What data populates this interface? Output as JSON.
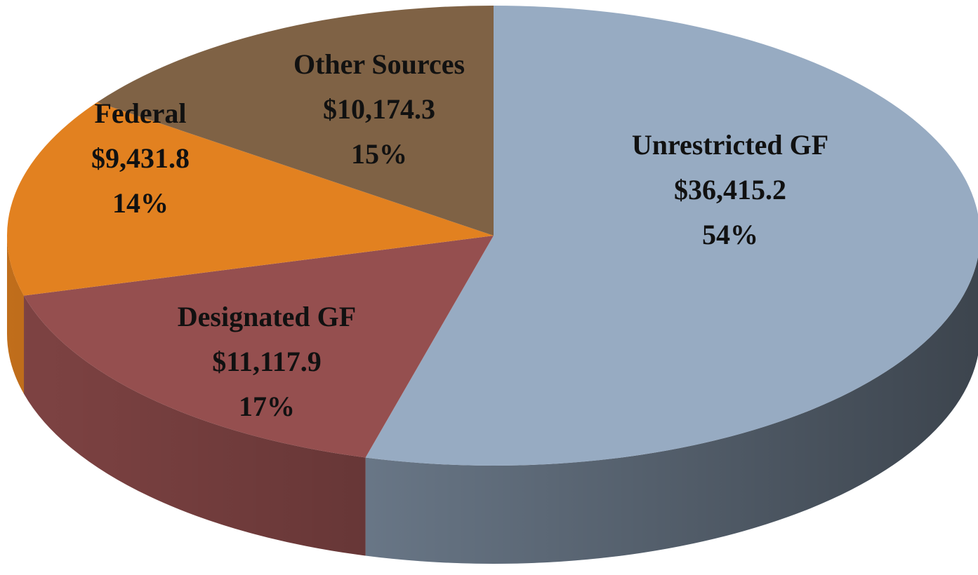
{
  "chart_data": {
    "type": "pie",
    "categories": [
      "Unrestricted GF",
      "Designated GF",
      "Federal",
      "Other Sources"
    ],
    "values": [
      36415.2,
      11117.9,
      9431.8,
      10174.3
    ],
    "value_labels": [
      "$36,415.2",
      "$11,117.9",
      "$9,431.8",
      "$10,174.3"
    ],
    "percentages": [
      54,
      17,
      14,
      15
    ],
    "percentage_labels": [
      "54%",
      "17%",
      "14%",
      "15%"
    ],
    "colors": [
      "#97abc2",
      "#954f4f",
      "#e28120",
      "#7f6245"
    ]
  }
}
